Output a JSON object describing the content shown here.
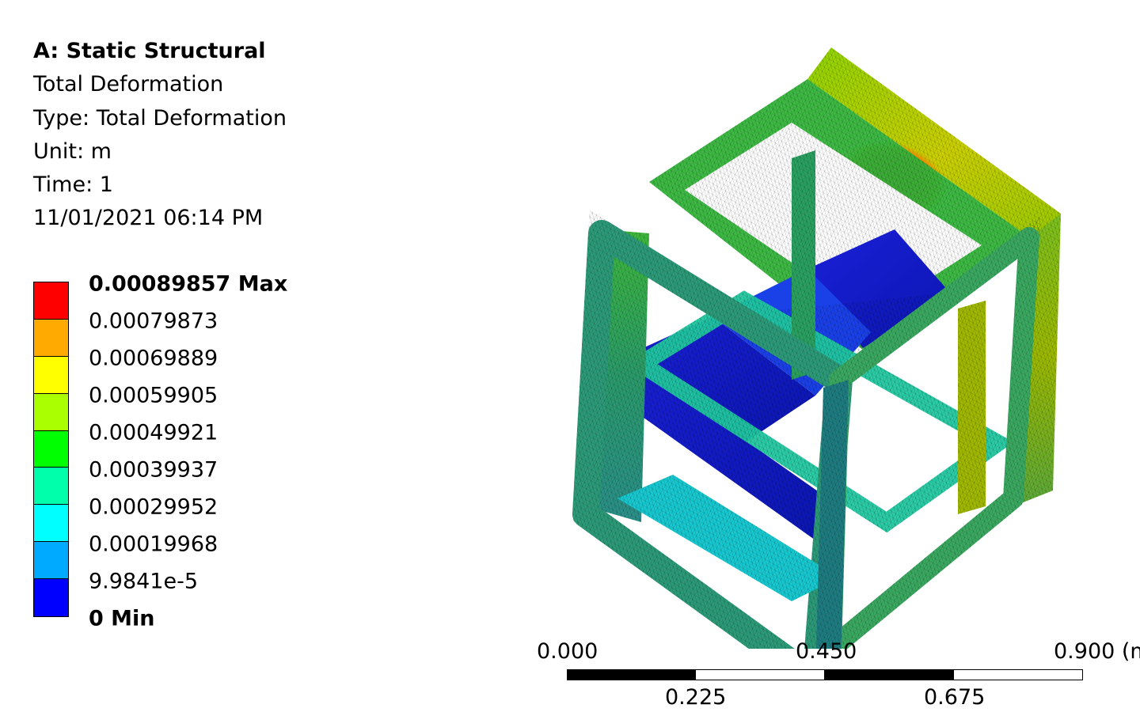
{
  "info": {
    "title": "A: Static Structural",
    "result": "Total Deformation",
    "type": "Type: Total Deformation",
    "unit": "Unit: m",
    "time": "Time: 1",
    "date": "11/01/2021 06:14 PM"
  },
  "legend": {
    "colors": [
      "#ff0000",
      "#ffaa00",
      "#ffff00",
      "#aaff00",
      "#00ff00",
      "#00ffaa",
      "#00ffff",
      "#00aaff",
      "#0000ff"
    ],
    "labels": [
      "0.00089857 Max",
      "0.00079873",
      "0.00069889",
      "0.00059905",
      "0.00049921",
      "0.00039937",
      "0.00029952",
      "0.00019968",
      "9.9841e-5",
      "0 Min"
    ]
  },
  "scale": {
    "top_labels": [
      "0.000",
      "0.450",
      "0.900 (m)"
    ],
    "bottom_labels": [
      "0.225",
      "0.675"
    ]
  }
}
